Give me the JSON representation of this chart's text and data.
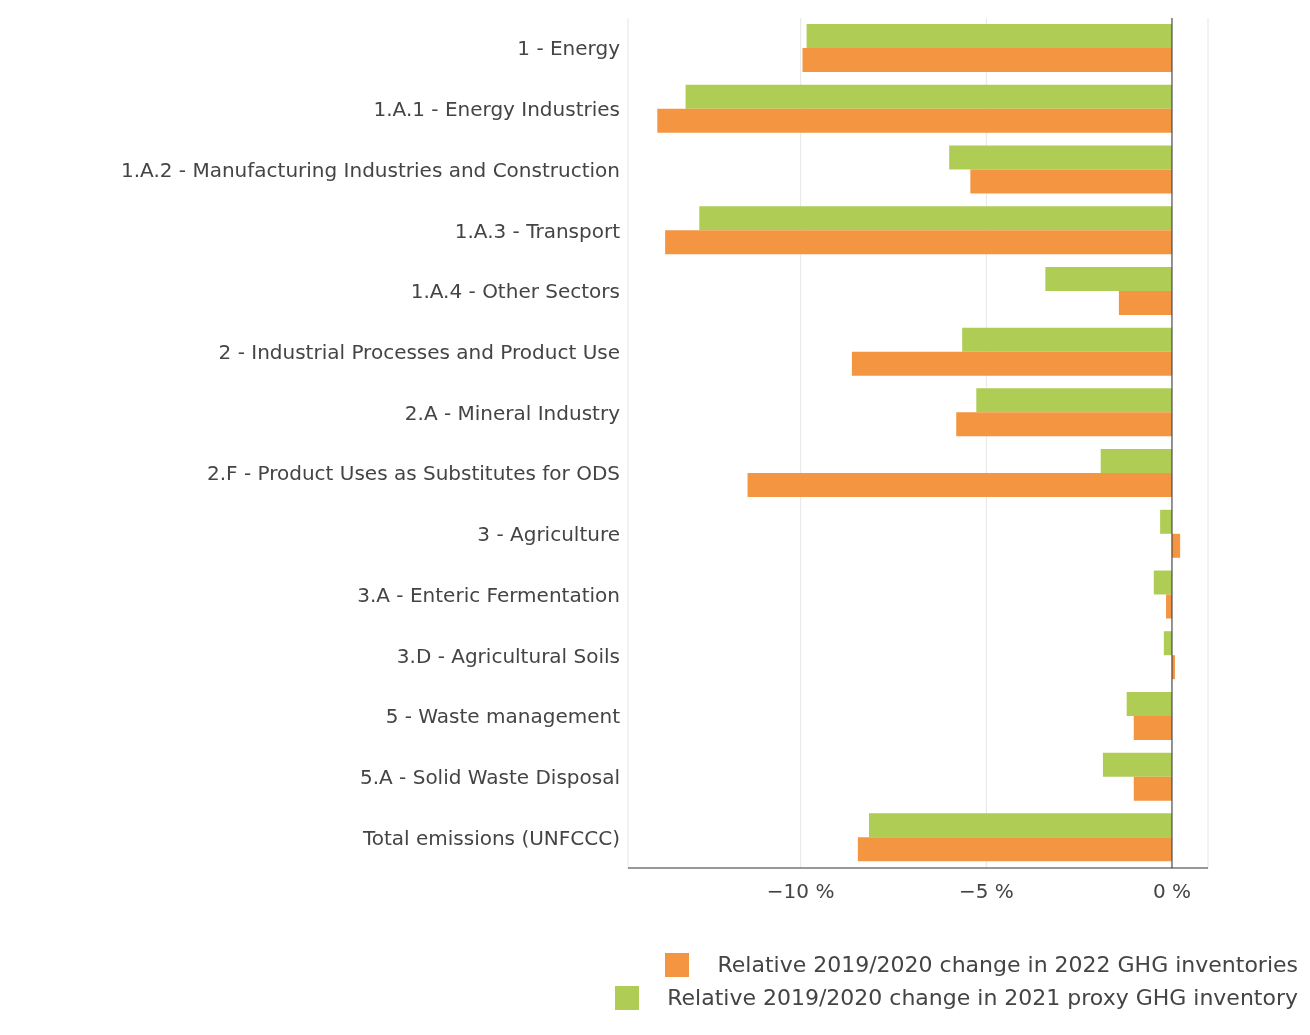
{
  "chart_data": {
    "type": "bar",
    "orientation": "horizontal",
    "categories": [
      "1 - Energy",
      "1.A.1 - Energy Industries",
      "1.A.2 - Manufacturing Industries and Construction",
      "1.A.3 - Transport",
      "1.A.4 - Other Sectors",
      "2 - Industrial Processes and Product Use",
      "2.A - Mineral Industry",
      "2.F - Product Uses as Substitutes for ODS",
      "3 - Agriculture",
      "3.A - Enteric Fermentation",
      "3.D - Agricultural Soils",
      "5 - Waste management",
      "5.A - Solid Waste Disposal",
      "Total emissions (UNFCCC)"
    ],
    "series": [
      {
        "name": "Relative 2019/2020 change in 2022 GHG inventories",
        "color": "#f39541",
        "values": [
          -9.95,
          -13.86,
          -5.43,
          -13.65,
          -1.43,
          -8.62,
          -5.81,
          -11.43,
          0.22,
          -0.16,
          0.08,
          -1.03,
          -1.03,
          -8.46
        ]
      },
      {
        "name": "Relative 2019/2020 change in 2021 proxy GHG inventory",
        "color": "#afcd55",
        "values": [
          -9.84,
          -13.1,
          -6.0,
          -12.73,
          -3.41,
          -5.65,
          -5.27,
          -1.92,
          -0.32,
          -0.49,
          -0.22,
          -1.22,
          -1.86,
          -8.16
        ]
      }
    ],
    "xlim": [
      -14.65,
      0.97
    ],
    "xticks": [
      {
        "value": -10,
        "label": "−10 %"
      },
      {
        "value": -5,
        "label": "−5 %"
      },
      {
        "value": 0,
        "label": "0 %"
      }
    ],
    "grid": "x",
    "legend": "bottom"
  }
}
